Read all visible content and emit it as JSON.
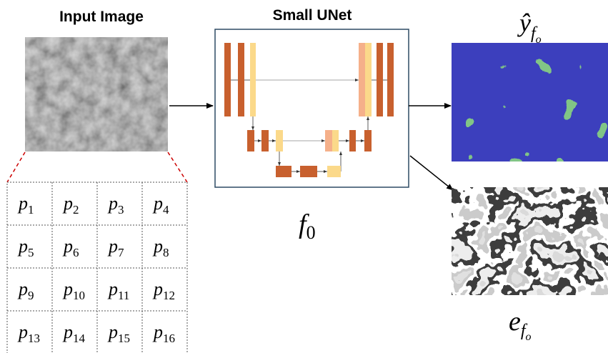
{
  "input_label": "Input Image",
  "model_label": "Small UNet",
  "model_symbol": {
    "base": "f",
    "sub": "0"
  },
  "output_prediction": {
    "base": "ŷ",
    "sub": "f",
    "subsub": "o"
  },
  "output_error": {
    "base": "e",
    "sub": "f",
    "subsub": "o"
  },
  "patch_grid": {
    "rows": [
      [
        {
          "base": "p",
          "sub": "1"
        },
        {
          "base": "p",
          "sub": "2"
        },
        {
          "base": "p",
          "sub": "3"
        },
        {
          "base": "p",
          "sub": "4"
        }
      ],
      [
        {
          "base": "p",
          "sub": "5"
        },
        {
          "base": "p",
          "sub": "6"
        },
        {
          "base": "p",
          "sub": "7"
        },
        {
          "base": "p",
          "sub": "8"
        }
      ],
      [
        {
          "base": "p",
          "sub": "9"
        },
        {
          "base": "p",
          "sub": "10"
        },
        {
          "base": "p",
          "sub": "11"
        },
        {
          "base": "p",
          "sub": "12"
        }
      ],
      [
        {
          "base": "p",
          "sub": "13"
        },
        {
          "base": "p",
          "sub": "14"
        },
        {
          "base": "p",
          "sub": "15"
        },
        {
          "base": "p",
          "sub": "16"
        }
      ]
    ]
  }
}
